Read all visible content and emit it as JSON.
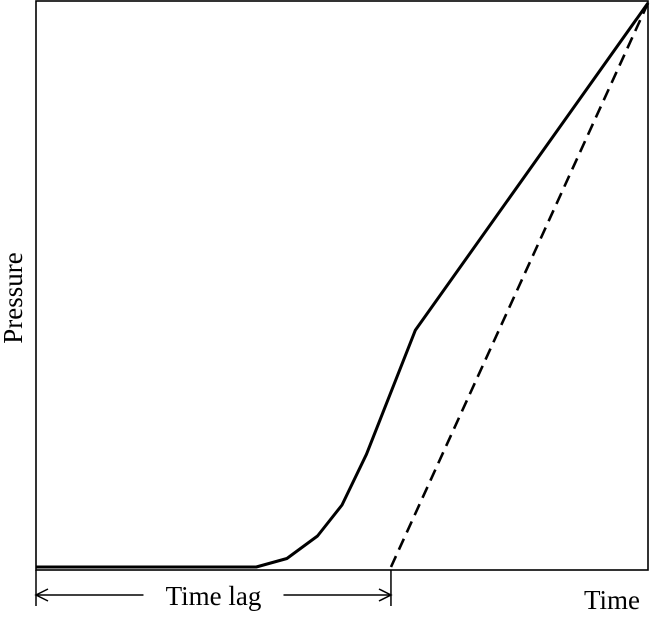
{
  "chart_data": {
    "type": "line",
    "title": "",
    "xlabel": "Time",
    "ylabel": "Pressure",
    "xlim": [
      0,
      100
    ],
    "ylim": [
      0,
      100
    ],
    "grid": false,
    "legend": "none",
    "series": [
      {
        "style": "solid",
        "color": "#000000",
        "x": [
          0,
          36,
          41,
          46,
          50,
          54,
          62,
          100
        ],
        "y": [
          0,
          0,
          1.5,
          5.5,
          11,
          20,
          42,
          100
        ]
      },
      {
        "style": "dashed",
        "color": "#000000",
        "x": [
          58,
          100
        ],
        "y": [
          0,
          100
        ]
      }
    ],
    "annotations": [
      {
        "text": "Time lag",
        "type": "double-arrow",
        "x_from": 0,
        "x_to": 58
      }
    ]
  }
}
